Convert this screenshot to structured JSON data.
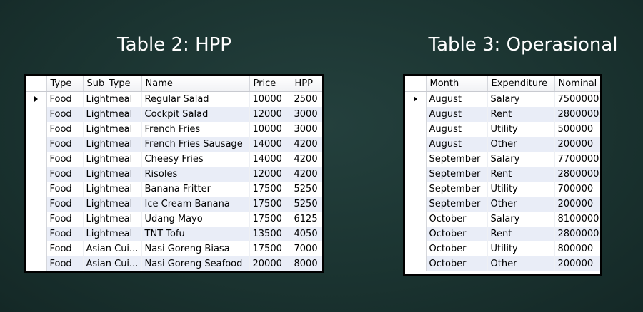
{
  "table2": {
    "title": "Table 2: HPP",
    "columns": [
      "Type",
      "Sub_Type",
      "Name",
      "Price",
      "HPP"
    ],
    "rows": [
      [
        "Food",
        "Lightmeal",
        "Regular Salad",
        "10000",
        "2500"
      ],
      [
        "Food",
        "Lightmeal",
        "Cockpit Salad",
        "12000",
        "3000"
      ],
      [
        "Food",
        "Lightmeal",
        "French Fries",
        "10000",
        "3000"
      ],
      [
        "Food",
        "Lightmeal",
        "French Fries Sausage",
        "14000",
        "4200"
      ],
      [
        "Food",
        "Lightmeal",
        "Cheesy Fries",
        "14000",
        "4200"
      ],
      [
        "Food",
        "Lightmeal",
        "Risoles",
        "12000",
        "4200"
      ],
      [
        "Food",
        "Lightmeal",
        "Banana Fritter",
        "17500",
        "5250"
      ],
      [
        "Food",
        "Lightmeal",
        "Ice Cream Banana",
        "17500",
        "5250"
      ],
      [
        "Food",
        "Lightmeal",
        "Udang Mayo",
        "17500",
        "6125"
      ],
      [
        "Food",
        "Lightmeal",
        "TNT Tofu",
        "13500",
        "4050"
      ],
      [
        "Food",
        "Asian Cui...",
        "Nasi Goreng Biasa",
        "17500",
        "7000"
      ],
      [
        "Food",
        "Asian Cui...",
        "Nasi Goreng Seafood",
        "20000",
        "8000"
      ]
    ]
  },
  "table3": {
    "title": "Table 3: Operasional",
    "columns": [
      "Month",
      "Expenditure",
      "Nominal"
    ],
    "rows": [
      [
        "August",
        "Salary",
        "7500000"
      ],
      [
        "August",
        "Rent",
        "2800000"
      ],
      [
        "August",
        "Utility",
        "500000"
      ],
      [
        "August",
        "Other",
        "200000"
      ],
      [
        "September",
        "Salary",
        "7700000"
      ],
      [
        "September",
        "Rent",
        "2800000"
      ],
      [
        "September",
        "Utility",
        "700000"
      ],
      [
        "September",
        "Other",
        "200000"
      ],
      [
        "October",
        "Salary",
        "8100000"
      ],
      [
        "October",
        "Rent",
        "2800000"
      ],
      [
        "October",
        "Utility",
        "800000"
      ],
      [
        "October",
        "Other",
        "200000"
      ]
    ]
  },
  "icons": {
    "current_row": "row-pointer-icon"
  }
}
